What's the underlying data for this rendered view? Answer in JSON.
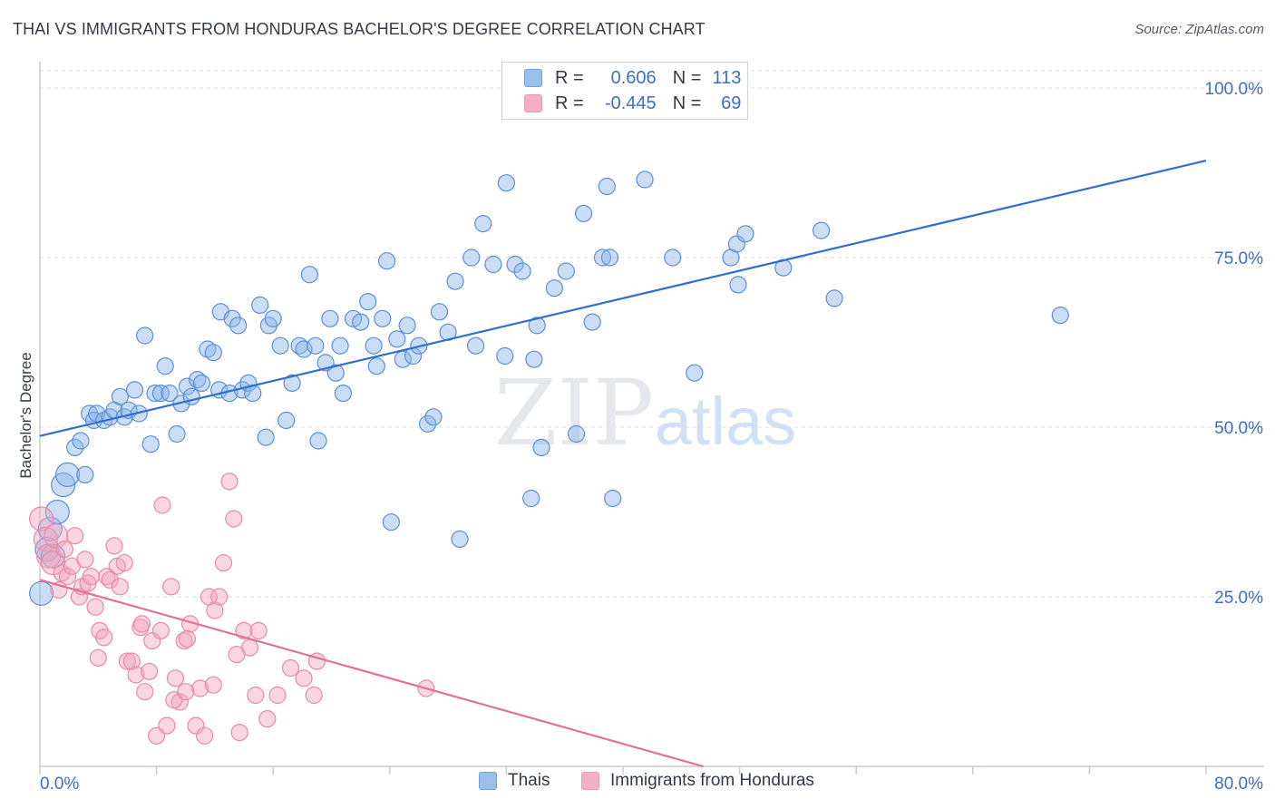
{
  "title": "THAI VS IMMIGRANTS FROM HONDURAS BACHELOR'S DEGREE CORRELATION CHART",
  "source": "Source: ZipAtlas.com",
  "watermark": {
    "zip": "ZIP",
    "atlas": "atlas"
  },
  "legend": {
    "r_label": "R =",
    "n_label": "N =",
    "rows": [
      {
        "series": "Thais",
        "r": "0.606",
        "n": "113",
        "color": "#8ab4e8"
      },
      {
        "series": "Immigrants from Honduras",
        "r": "-0.445",
        "n": "69",
        "color": "#f1a3bb"
      }
    ]
  },
  "bottom_legend": [
    "Thais",
    "Immigrants from Honduras"
  ],
  "chart_data": {
    "type": "scatter",
    "title": "THAI VS IMMIGRANTS FROM HONDURAS BACHELOR'S DEGREE CORRELATION CHART",
    "xlabel": "",
    "ylabel": "Bachelor's Degree",
    "xlim": [
      0,
      80
    ],
    "ylim": [
      0,
      100
    ],
    "x_tick_labels": [
      "0.0%",
      "80.0%"
    ],
    "y_tick_labels": [
      "100.0%",
      "75.0%",
      "50.0%",
      "25.0%"
    ],
    "y_ticks": [
      100,
      75,
      50,
      25
    ],
    "grid": true,
    "legend_placement": "top-center",
    "series": [
      {
        "name": "Thais",
        "color": "#8ab4e8",
        "stroke": "#5b8fd6",
        "trend": {
          "x": [
            0,
            80
          ],
          "y": [
            48.7,
            89.3
          ],
          "color": "#2f6fd0"
        },
        "points": [
          [
            0.1,
            25.5
          ],
          [
            0.5,
            32.0
          ],
          [
            0.7,
            35.0
          ],
          [
            1.2,
            37.5
          ],
          [
            1.6,
            41.5
          ],
          [
            1.9,
            43.0
          ],
          [
            2.4,
            47.0
          ],
          [
            2.8,
            48.0
          ],
          [
            3.1,
            43.0
          ],
          [
            3.4,
            52.0
          ],
          [
            3.7,
            51.0
          ],
          [
            3.9,
            52.0
          ],
          [
            4.4,
            51.0
          ],
          [
            4.8,
            51.5
          ],
          [
            5.1,
            52.5
          ],
          [
            5.5,
            54.5
          ],
          [
            5.8,
            51.5
          ],
          [
            6.1,
            52.5
          ],
          [
            6.5,
            55.5
          ],
          [
            6.8,
            52.0
          ],
          [
            7.2,
            63.5
          ],
          [
            7.6,
            47.5
          ],
          [
            7.9,
            55.0
          ],
          [
            8.3,
            55.0
          ],
          [
            8.6,
            59.0
          ],
          [
            8.9,
            55.0
          ],
          [
            9.4,
            49.0
          ],
          [
            9.7,
            53.5
          ],
          [
            10.1,
            56.0
          ],
          [
            10.4,
            54.5
          ],
          [
            10.8,
            57.0
          ],
          [
            11.1,
            56.5
          ],
          [
            11.5,
            61.5
          ],
          [
            11.9,
            61.0
          ],
          [
            12.3,
            55.5
          ],
          [
            12.4,
            67.0
          ],
          [
            13.0,
            55.0
          ],
          [
            13.2,
            66.0
          ],
          [
            13.6,
            65.0
          ],
          [
            13.9,
            55.5
          ],
          [
            14.3,
            56.5
          ],
          [
            14.6,
            55.0
          ],
          [
            15.1,
            68.0
          ],
          [
            15.5,
            48.5
          ],
          [
            15.7,
            65.0
          ],
          [
            16.0,
            66.0
          ],
          [
            16.5,
            62.0
          ],
          [
            16.9,
            51.0
          ],
          [
            17.3,
            56.5
          ],
          [
            17.8,
            62.0
          ],
          [
            18.1,
            61.5
          ],
          [
            18.5,
            72.5
          ],
          [
            18.9,
            62.0
          ],
          [
            19.1,
            48.0
          ],
          [
            19.6,
            59.5
          ],
          [
            19.9,
            66.0
          ],
          [
            20.3,
            58.0
          ],
          [
            20.6,
            62.0
          ],
          [
            20.8,
            55.0
          ],
          [
            21.5,
            66.0
          ],
          [
            22.0,
            65.5
          ],
          [
            22.5,
            68.5
          ],
          [
            22.9,
            62.0
          ],
          [
            23.1,
            59.0
          ],
          [
            23.5,
            66.0
          ],
          [
            23.8,
            74.5
          ],
          [
            24.1,
            36.0
          ],
          [
            24.5,
            63.0
          ],
          [
            24.9,
            60.0
          ],
          [
            25.2,
            65.0
          ],
          [
            25.6,
            60.5
          ],
          [
            26.0,
            62.0
          ],
          [
            26.6,
            50.5
          ],
          [
            27.0,
            51.5
          ],
          [
            27.4,
            67.0
          ],
          [
            28.0,
            64.0
          ],
          [
            28.5,
            71.5
          ],
          [
            28.8,
            33.5
          ],
          [
            29.6,
            75.0
          ],
          [
            29.9,
            62.0
          ],
          [
            30.4,
            80.0
          ],
          [
            31.1,
            74.0
          ],
          [
            31.9,
            60.5
          ],
          [
            32.0,
            86.0
          ],
          [
            32.6,
            74.0
          ],
          [
            33.1,
            73.0
          ],
          [
            33.9,
            60.0
          ],
          [
            34.1,
            65.0
          ],
          [
            33.7,
            39.5
          ],
          [
            34.4,
            47.0
          ],
          [
            35.3,
            70.5
          ],
          [
            36.1,
            73.0
          ],
          [
            36.8,
            49.0
          ],
          [
            37.3,
            81.5
          ],
          [
            37.9,
            65.5
          ],
          [
            38.6,
            75.0
          ],
          [
            38.9,
            85.5
          ],
          [
            39.1,
            75.0
          ],
          [
            39.3,
            39.5
          ],
          [
            41.5,
            86.5
          ],
          [
            43.4,
            75.0
          ],
          [
            44.9,
            58.0
          ],
          [
            47.4,
            75.0
          ],
          [
            47.8,
            77.0
          ],
          [
            47.9,
            71.0
          ],
          [
            48.4,
            78.5
          ],
          [
            51.0,
            73.5
          ],
          [
            53.6,
            79.0
          ],
          [
            54.5,
            69.0
          ],
          [
            70.0,
            66.5
          ],
          [
            0.9,
            31.0
          ]
        ]
      },
      {
        "name": "Immigrants from Honduras",
        "color": "#f1a3bb",
        "stroke": "#e78aa7",
        "trend": {
          "x": [
            0,
            45.5
          ],
          "y": [
            27.5,
            0
          ],
          "color": "#e0709a"
        },
        "points": [
          [
            0.1,
            36.5
          ],
          [
            0.4,
            33.5
          ],
          [
            0.6,
            31.0
          ],
          [
            0.9,
            30.0
          ],
          [
            1.1,
            34.0
          ],
          [
            1.3,
            26.0
          ],
          [
            1.5,
            28.5
          ],
          [
            1.7,
            32.0
          ],
          [
            1.9,
            28.0
          ],
          [
            2.2,
            29.5
          ],
          [
            2.4,
            34.0
          ],
          [
            2.7,
            25.0
          ],
          [
            2.9,
            26.5
          ],
          [
            3.1,
            30.5
          ],
          [
            3.3,
            27.0
          ],
          [
            3.5,
            28.0
          ],
          [
            3.8,
            23.5
          ],
          [
            4.1,
            20.0
          ],
          [
            4.4,
            19.0
          ],
          [
            4.6,
            28.0
          ],
          [
            4.8,
            27.5
          ],
          [
            5.1,
            32.5
          ],
          [
            5.3,
            29.5
          ],
          [
            5.5,
            26.5
          ],
          [
            5.8,
            30.0
          ],
          [
            6.0,
            15.5
          ],
          [
            6.3,
            15.5
          ],
          [
            6.6,
            13.5
          ],
          [
            6.9,
            20.5
          ],
          [
            7.2,
            11.0
          ],
          [
            7.5,
            14.0
          ],
          [
            7.7,
            18.5
          ],
          [
            8.0,
            4.5
          ],
          [
            8.3,
            20.0
          ],
          [
            8.7,
            6.0
          ],
          [
            9.0,
            26.5
          ],
          [
            9.3,
            13.0
          ],
          [
            9.6,
            9.5
          ],
          [
            9.9,
            18.5
          ],
          [
            10.3,
            21.0
          ],
          [
            10.7,
            6.0
          ],
          [
            11.0,
            11.5
          ],
          [
            11.3,
            4.5
          ],
          [
            11.6,
            25.0
          ],
          [
            12.0,
            23.0
          ],
          [
            12.3,
            25.0
          ],
          [
            12.6,
            30.0
          ],
          [
            13.0,
            42.0
          ],
          [
            13.3,
            36.5
          ],
          [
            13.7,
            5.0
          ],
          [
            14.0,
            20.0
          ],
          [
            14.4,
            17.5
          ],
          [
            15.0,
            20.0
          ],
          [
            15.6,
            7.0
          ],
          [
            16.3,
            10.5
          ],
          [
            17.2,
            14.5
          ],
          [
            18.1,
            13.0
          ],
          [
            19.0,
            15.5
          ],
          [
            26.5,
            11.5
          ],
          [
            8.4,
            38.5
          ],
          [
            10.1,
            18.8
          ],
          [
            11.9,
            12.0
          ],
          [
            9.2,
            9.8
          ],
          [
            7.0,
            21.0
          ],
          [
            4.0,
            16.0
          ],
          [
            13.5,
            16.5
          ],
          [
            10.0,
            11.0
          ],
          [
            18.8,
            10.5
          ],
          [
            14.8,
            10.5
          ]
        ]
      }
    ]
  }
}
